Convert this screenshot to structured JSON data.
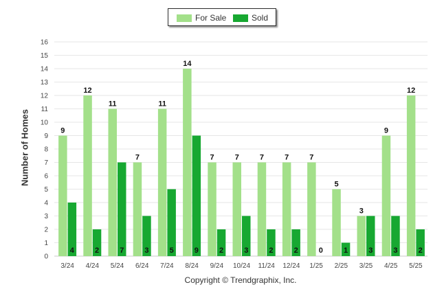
{
  "chart_data": {
    "type": "bar",
    "categories": [
      "3/24",
      "4/24",
      "5/24",
      "6/24",
      "7/24",
      "8/24",
      "9/24",
      "10/24",
      "11/24",
      "12/24",
      "1/25",
      "2/25",
      "3/25",
      "4/25",
      "5/25"
    ],
    "series": [
      {
        "name": "For Sale",
        "color": "#a3e08a",
        "values": [
          9,
          12,
          11,
          7,
          11,
          14,
          7,
          7,
          7,
          7,
          7,
          5,
          3,
          9,
          12
        ]
      },
      {
        "name": "Sold",
        "color": "#17a831",
        "values": [
          4,
          2,
          7,
          3,
          5,
          9,
          2,
          3,
          2,
          2,
          0,
          1,
          3,
          3,
          2
        ]
      }
    ],
    "title": "",
    "xlabel": "",
    "ylabel": "Number of Homes",
    "ylim": [
      0,
      16
    ],
    "yticks": [
      0,
      1,
      2,
      3,
      4,
      5,
      6,
      7,
      8,
      9,
      10,
      11,
      12,
      13,
      14,
      15,
      16
    ],
    "grid": true,
    "legend_position": "top-center"
  },
  "footer": {
    "credit": "Copyright © Trendgraphix, Inc."
  }
}
